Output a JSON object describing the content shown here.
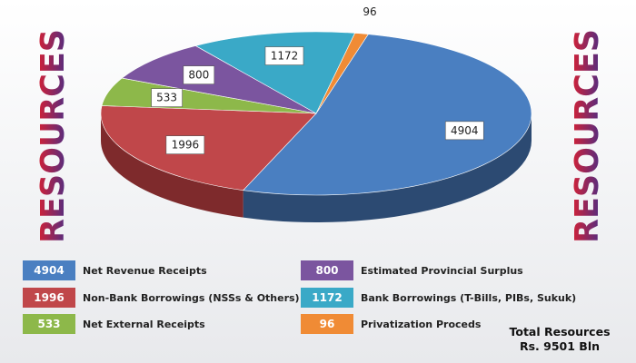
{
  "side_title": "RESOURCES",
  "chart_data": {
    "type": "pie",
    "style": "3d",
    "title": "RESOURCES",
    "unit": "Rs. Bln",
    "slices": [
      {
        "label": "Net Revenue Receipts",
        "value": 4904,
        "color": "#4a7fc1",
        "dark": "#2c4a72"
      },
      {
        "label": "Non-Bank Borrowings (NSSs & Others)",
        "value": 1996,
        "color": "#c0474a",
        "dark": "#7e2a2c"
      },
      {
        "label": "Net External Receipts",
        "value": 533,
        "color": "#8db84a",
        "dark": "#5b7a2c"
      },
      {
        "label": "Estimated Provincial Surplus",
        "value": 800,
        "color": "#7b559f",
        "dark": "#4c3366"
      },
      {
        "label": "Bank Borrowings (T-Bills, PIBs, Sukuk)",
        "value": 1172,
        "color": "#3aa9c7",
        "dark": "#226a80"
      },
      {
        "label": "Privatization Proceds",
        "value": 96,
        "color": "#f08b35",
        "dark": "#a75a1c"
      }
    ],
    "total_label": "Total Resources",
    "total_value": "Rs. 9501 Bln",
    "legend_placement": "bottom"
  }
}
